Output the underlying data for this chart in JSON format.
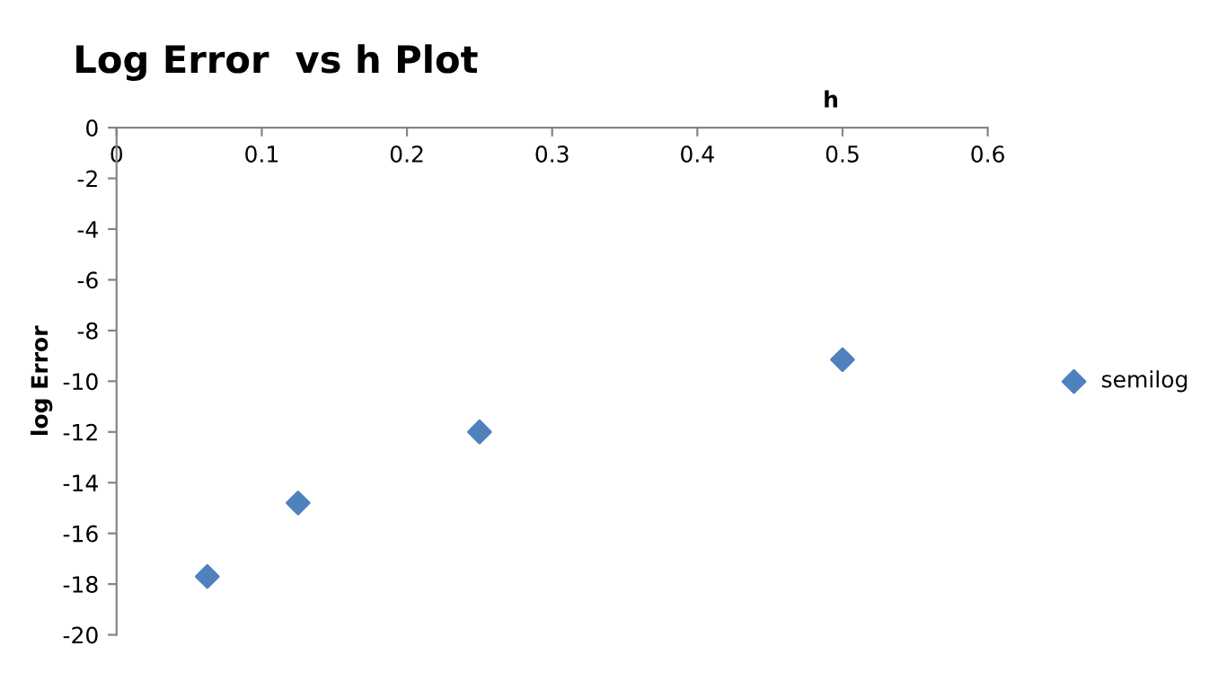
{
  "chart_data": {
    "type": "scatter",
    "title": "Log Error  vs h Plot",
    "xlabel": "h",
    "ylabel": "log Error",
    "x": [
      0.0625,
      0.125,
      0.25,
      0.5
    ],
    "series": [
      {
        "name": "semilog",
        "color": "#4f81bd",
        "values": [
          -17.7,
          -14.8,
          -12.0,
          -9.15
        ]
      }
    ],
    "xlim": [
      0,
      0.6
    ],
    "xticks": [
      0,
      0.1,
      0.2,
      0.3,
      0.4,
      0.5,
      0.6
    ],
    "ylim": [
      -20,
      0
    ],
    "yticks": [
      0,
      -2,
      -4,
      -6,
      -8,
      -10,
      -12,
      -14,
      -16,
      -18,
      -20
    ],
    "marker": "diamond",
    "grid": false,
    "legend": "right"
  }
}
